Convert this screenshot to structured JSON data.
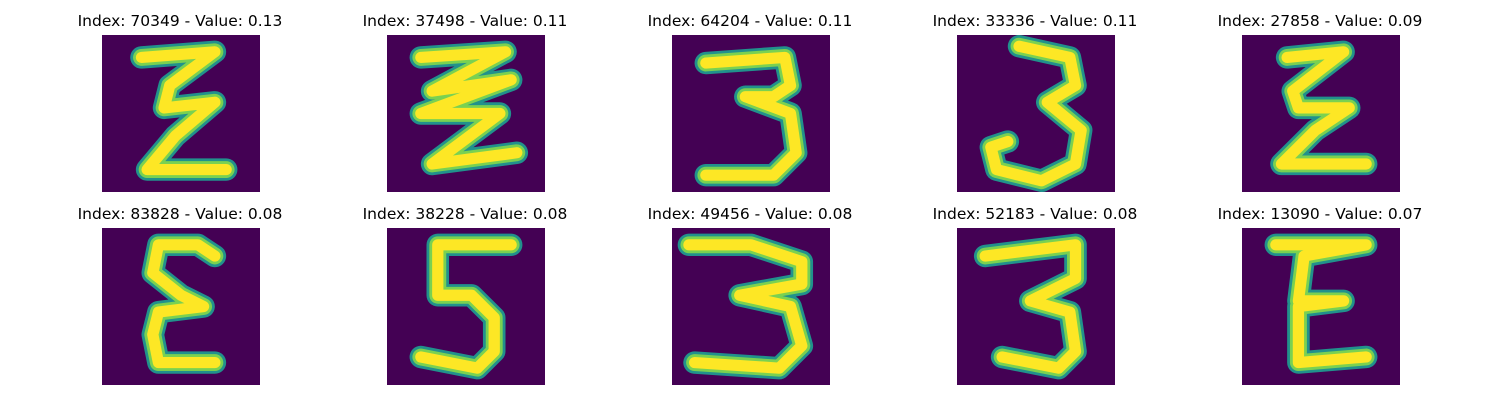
{
  "figure": {
    "background_color": "#440154",
    "stroke_edge_color": "#21918c",
    "stroke_mid_color": "#7ad151",
    "stroke_core_color": "#fde725",
    "panels": [
      {
        "title": "Index: 70349 - Value: 0.13",
        "depicts": "digit-3-mirrored"
      },
      {
        "title": "Index: 37498 - Value: 0.11",
        "depicts": "digit-3-mirrored-zigzag"
      },
      {
        "title": "Index: 64204 - Value: 0.11",
        "depicts": "digit-3"
      },
      {
        "title": "Index: 33336 - Value: 0.11",
        "depicts": "digit-3"
      },
      {
        "title": "Index: 27858 - Value: 0.09",
        "depicts": "digit-3-mirrored"
      },
      {
        "title": "Index: 83828 - Value: 0.08",
        "depicts": "digit-3-mirrored"
      },
      {
        "title": "Index: 38228 - Value: 0.08",
        "depicts": "digit-5"
      },
      {
        "title": "Index: 49456 - Value: 0.08",
        "depicts": "digit-3"
      },
      {
        "title": "Index: 52183 - Value: 0.08",
        "depicts": "digit-3"
      },
      {
        "title": "Index: 13090 - Value: 0.07",
        "depicts": "digit-3-mirrored"
      }
    ]
  }
}
